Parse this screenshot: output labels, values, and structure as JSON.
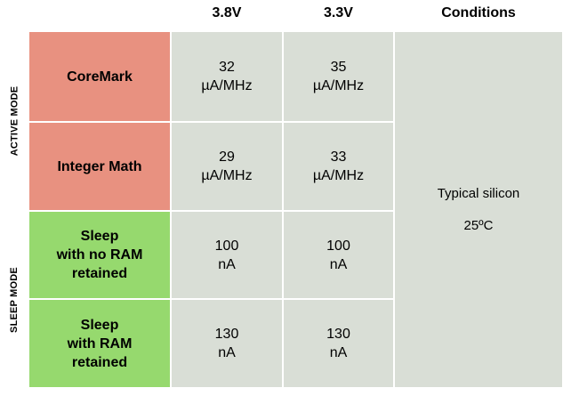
{
  "headers": {
    "v1": "3.8V",
    "v2": "3.3V",
    "conditions": "Conditions"
  },
  "side_labels": {
    "active": "ACTIVE MODE",
    "sleep": "SLEEP MODE"
  },
  "rows": [
    {
      "label_lines": [
        "CoreMark"
      ],
      "v1": {
        "value": "32",
        "unit": "µA/MHz"
      },
      "v2": {
        "value": "35",
        "unit": "µA/MHz"
      }
    },
    {
      "label_lines": [
        "Integer Math"
      ],
      "v1": {
        "value": "29",
        "unit": "µA/MHz"
      },
      "v2": {
        "value": "33",
        "unit": "µA/MHz"
      }
    },
    {
      "label_lines": [
        "Sleep",
        "with no RAM",
        "retained"
      ],
      "v1": {
        "value": "100",
        "unit": "nA"
      },
      "v2": {
        "value": "100",
        "unit": "nA"
      }
    },
    {
      "label_lines": [
        "Sleep",
        "with RAM",
        "retained"
      ],
      "v1": {
        "value": "130",
        "unit": "nA"
      },
      "v2": {
        "value": "130",
        "unit": "nA"
      }
    }
  ],
  "conditions": {
    "line1": "Typical silicon",
    "line2": "25ºC"
  },
  "colors": {
    "active": "#e89180",
    "sleep": "#96d96e",
    "value_bg": "#d9ded6"
  }
}
